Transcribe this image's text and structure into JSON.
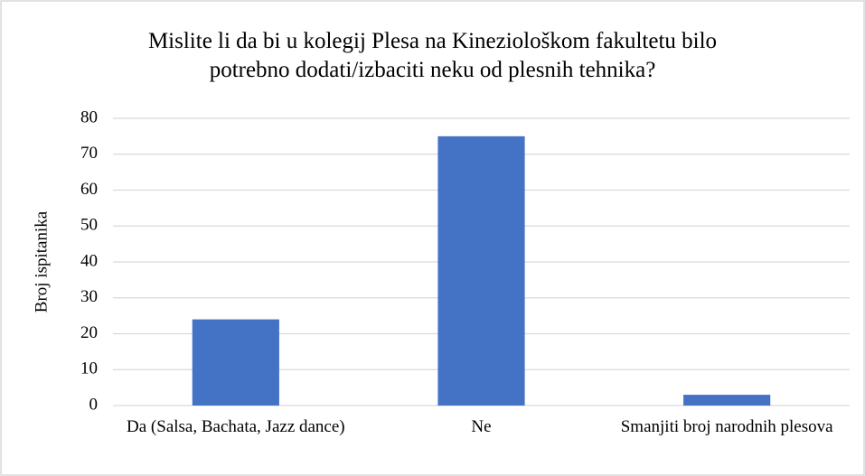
{
  "chart_data": {
    "type": "bar",
    "title": "Mislite li da bi u kolegij Plesa na Kineziološkom fakultetu bilo potrebno dodati/izbaciti neku od plesnih tehnika?",
    "y_label": "Broj ispitanika",
    "categories": [
      "Da (Salsa, Bachata, Jazz dance)",
      "Ne",
      "Smanjiti broj narodnih plesova"
    ],
    "values": [
      24,
      75,
      3
    ],
    "color": "#4472c4",
    "ylim": [
      0,
      80
    ],
    "yticks": [
      0,
      10,
      20,
      30,
      40,
      50,
      60,
      70,
      80
    ],
    "grid": true
  }
}
